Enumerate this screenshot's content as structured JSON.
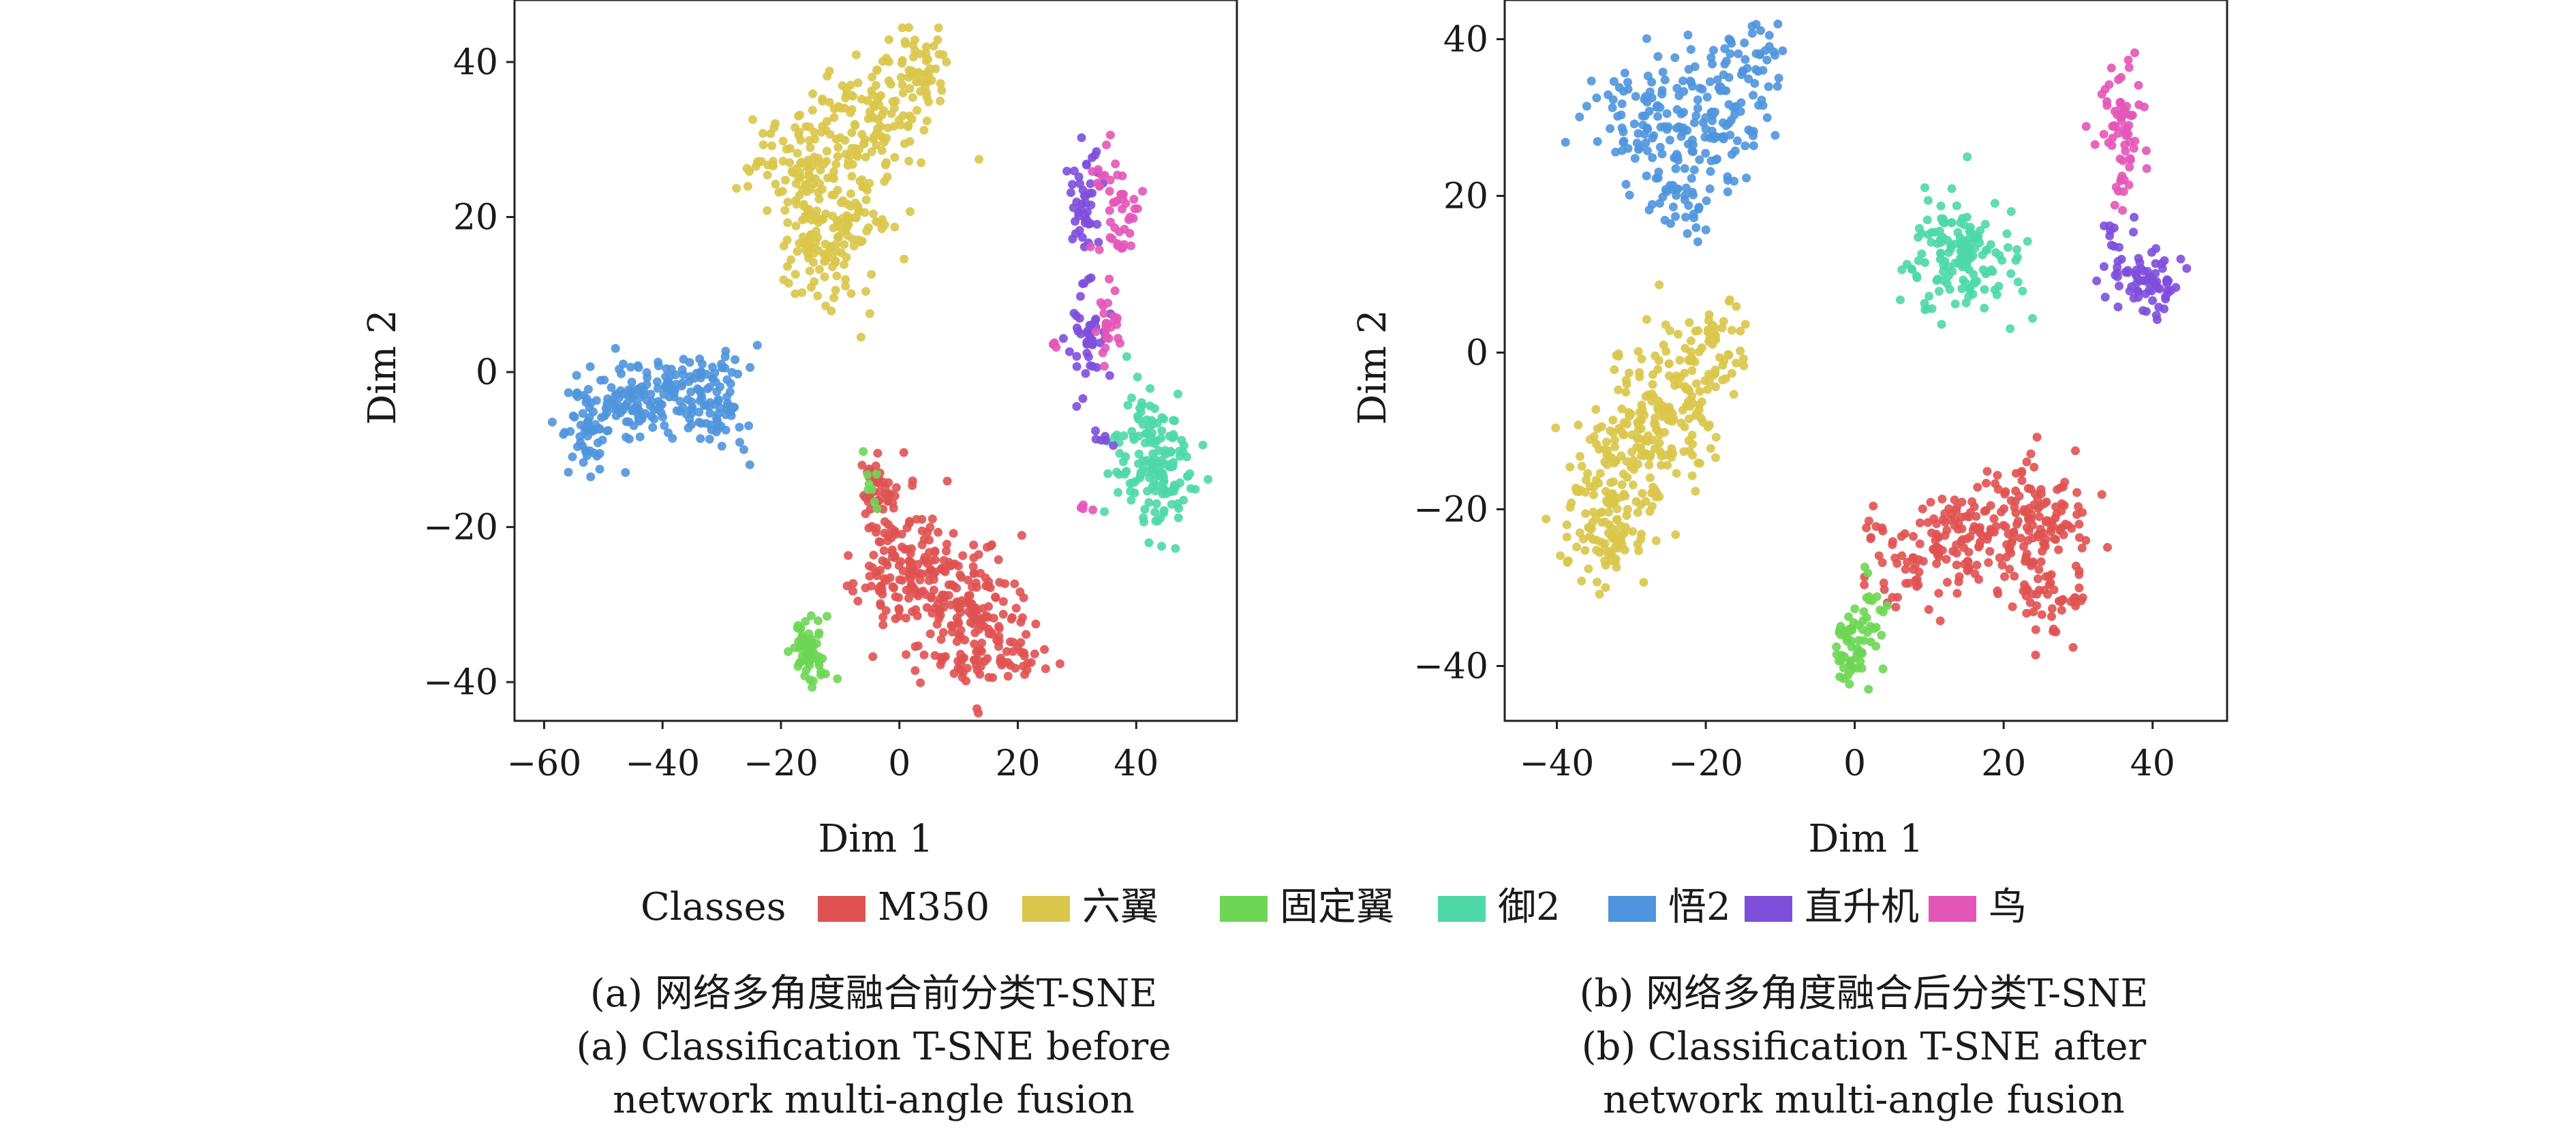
{
  "legend": {
    "title": "Classes",
    "items": [
      {
        "label": "M350",
        "color": "#e05252"
      },
      {
        "label": "六翼",
        "color": "#d9c64a"
      },
      {
        "label": "固定翼",
        "color": "#6ed655"
      },
      {
        "label": "御2",
        "color": "#4ed8a8"
      },
      {
        "label": "悟2",
        "color": "#4f95dd"
      },
      {
        "label": "直升机",
        "color": "#7e4fdb"
      },
      {
        "label": "鸟",
        "color": "#e356b8"
      }
    ]
  },
  "captions": {
    "a": {
      "zh": "(a) 网络多角度融合前分类T-SNE",
      "en1": "(a) Classification T-SNE before",
      "en2": "network multi-angle fusion"
    },
    "b": {
      "zh": "(b) 网络多角度融合后分类T-SNE",
      "en1": "(b) Classification T-SNE after",
      "en2": "network multi-angle fusion"
    }
  },
  "chart_data": [
    {
      "type": "scatter",
      "xlabel": "Dim 1",
      "ylabel": "Dim 2",
      "xlim": [
        -65,
        57
      ],
      "ylim": [
        -45,
        48
      ],
      "xticks": [
        -60,
        -40,
        -20,
        0,
        20,
        40
      ],
      "yticks": [
        -40,
        -20,
        0,
        20,
        40
      ],
      "series": [
        {
          "name": "M350",
          "color": "#e05252",
          "clusters": [
            {
              "cx": 0,
              "cy": -24,
              "sx": 3.5,
              "sy": 5,
              "n": 120
            },
            {
              "cx": 9,
              "cy": -29,
              "sx": 5,
              "sy": 4.5,
              "n": 140
            },
            {
              "cx": 16,
              "cy": -35,
              "sx": 4,
              "sy": 3.5,
              "n": 90
            },
            {
              "cx": -4,
              "cy": -15,
              "sx": 2,
              "sy": 2.5,
              "n": 35
            }
          ]
        },
        {
          "name": "六翼",
          "color": "#d9c64a",
          "clusters": [
            {
              "cx": -17,
              "cy": 27,
              "sx": 4,
              "sy": 4.5,
              "n": 110
            },
            {
              "cx": -9,
              "cy": 20,
              "sx": 3.5,
              "sy": 5.5,
              "n": 110
            },
            {
              "cx": -5,
              "cy": 33,
              "sx": 4,
              "sy": 3.5,
              "n": 90
            },
            {
              "cx": 3,
              "cy": 40,
              "sx": 2.5,
              "sy": 2.5,
              "n": 55
            },
            {
              "cx": -15,
              "cy": 15,
              "sx": 2.5,
              "sy": 3,
              "n": 40
            }
          ]
        },
        {
          "name": "固定翼",
          "color": "#6ed655",
          "clusters": [
            {
              "cx": -15,
              "cy": -36,
              "sx": 1.5,
              "sy": 2.2,
              "n": 65
            },
            {
              "cx": -5,
              "cy": -14,
              "sx": 0.8,
              "sy": 1.5,
              "n": 8
            }
          ]
        },
        {
          "name": "御2",
          "color": "#4ed8a8",
          "clusters": [
            {
              "cx": 44,
              "cy": -13,
              "sx": 3.5,
              "sy": 4,
              "n": 130
            },
            {
              "cx": 41,
              "cy": -7,
              "sx": 2,
              "sy": 2.5,
              "n": 25
            }
          ]
        },
        {
          "name": "悟2",
          "color": "#4f95dd",
          "clusters": [
            {
              "cx": -53,
              "cy": -7,
              "sx": 2.5,
              "sy": 2.8,
              "n": 60
            },
            {
              "cx": -45,
              "cy": -4,
              "sx": 3,
              "sy": 2.8,
              "n": 80
            },
            {
              "cx": -36,
              "cy": -3,
              "sx": 3,
              "sy": 2.5,
              "n": 70
            },
            {
              "cx": -30,
              "cy": -4,
              "sx": 2.2,
              "sy": 3.5,
              "n": 60
            }
          ]
        },
        {
          "name": "直升机",
          "color": "#7e4fdb",
          "clusters": [
            {
              "cx": 31,
              "cy": 22,
              "sx": 1.5,
              "sy": 3.5,
              "n": 45
            },
            {
              "cx": 32,
              "cy": 4,
              "sx": 1.5,
              "sy": 4,
              "n": 45
            },
            {
              "cx": 34,
              "cy": -9,
              "sx": 0.8,
              "sy": 1,
              "n": 6
            }
          ]
        },
        {
          "name": "鸟",
          "color": "#e356b8",
          "clusters": [
            {
              "cx": 37,
              "cy": 21,
              "sx": 1.8,
              "sy": 3.5,
              "n": 45
            },
            {
              "cx": 36,
              "cy": 6,
              "sx": 1.2,
              "sy": 3,
              "n": 25
            },
            {
              "cx": 26,
              "cy": 3,
              "sx": 0.5,
              "sy": 0.6,
              "n": 4
            },
            {
              "cx": 31,
              "cy": -17,
              "sx": 0.6,
              "sy": 0.6,
              "n": 4
            }
          ]
        }
      ]
    },
    {
      "type": "scatter",
      "xlabel": "Dim 1",
      "ylabel": "Dim 2",
      "xlim": [
        -47,
        50
      ],
      "ylim": [
        -47,
        45
      ],
      "xticks": [
        -40,
        -20,
        0,
        20,
        40
      ],
      "yticks": [
        -40,
        -20,
        0,
        20,
        40
      ],
      "series": [
        {
          "name": "M350",
          "color": "#e05252",
          "clusters": [
            {
              "cx": 15,
              "cy": -23,
              "sx": 4,
              "sy": 3,
              "n": 110
            },
            {
              "cx": 24,
              "cy": -22,
              "sx": 3.5,
              "sy": 4.5,
              "n": 120
            },
            {
              "cx": 7,
              "cy": -28,
              "sx": 2.5,
              "sy": 2.5,
              "n": 40
            },
            {
              "cx": 26,
              "cy": -32,
              "sx": 2.5,
              "sy": 2.2,
              "n": 35
            },
            {
              "cx": 2,
              "cy": -23,
              "sx": 1,
              "sy": 1,
              "n": 8
            }
          ]
        },
        {
          "name": "六翼",
          "color": "#d9c64a",
          "clusters": [
            {
              "cx": -32,
              "cy": -17,
              "sx": 3.5,
              "sy": 5.5,
              "n": 140
            },
            {
              "cx": -25,
              "cy": -8,
              "sx": 4,
              "sy": 5,
              "n": 130
            },
            {
              "cx": -20,
              "cy": 1,
              "sx": 3,
              "sy": 3,
              "n": 60
            },
            {
              "cx": -33,
              "cy": -24,
              "sx": 2.5,
              "sy": 2.5,
              "n": 40
            }
          ]
        },
        {
          "name": "固定翼",
          "color": "#6ed655",
          "clusters": [
            {
              "cx": 0,
              "cy": -38,
              "sx": 1.4,
              "sy": 2.5,
              "n": 55
            },
            {
              "cx": 2,
              "cy": -32,
              "sx": 1,
              "sy": 2,
              "n": 15
            }
          ]
        },
        {
          "name": "御2",
          "color": "#4ed8a8",
          "clusters": [
            {
              "cx": 14,
              "cy": 12,
              "sx": 3.5,
              "sy": 3.2,
              "n": 150
            }
          ]
        },
        {
          "name": "悟2",
          "color": "#4f95dd",
          "clusters": [
            {
              "cx": -28,
              "cy": 30,
              "sx": 4,
              "sy": 3.5,
              "n": 90
            },
            {
              "cx": -19,
              "cy": 30,
              "sx": 3.5,
              "sy": 4.5,
              "n": 90
            },
            {
              "cx": -14,
              "cy": 37,
              "sx": 2,
              "sy": 2.5,
              "n": 35
            },
            {
              "cx": -22,
              "cy": 19,
              "sx": 3,
              "sy": 2.5,
              "n": 40
            }
          ]
        },
        {
          "name": "直升机",
          "color": "#7e4fdb",
          "clusters": [
            {
              "cx": 39,
              "cy": 9,
              "sx": 3,
              "sy": 2.2,
              "n": 70
            },
            {
              "cx": 35,
              "cy": 15,
              "sx": 1,
              "sy": 1.5,
              "n": 10
            }
          ]
        },
        {
          "name": "鸟",
          "color": "#e356b8",
          "clusters": [
            {
              "cx": 36,
              "cy": 29,
              "sx": 1.7,
              "sy": 4,
              "n": 60
            },
            {
              "cx": 36,
              "cy": 20,
              "sx": 0.8,
              "sy": 1.5,
              "n": 8
            }
          ]
        }
      ]
    }
  ]
}
